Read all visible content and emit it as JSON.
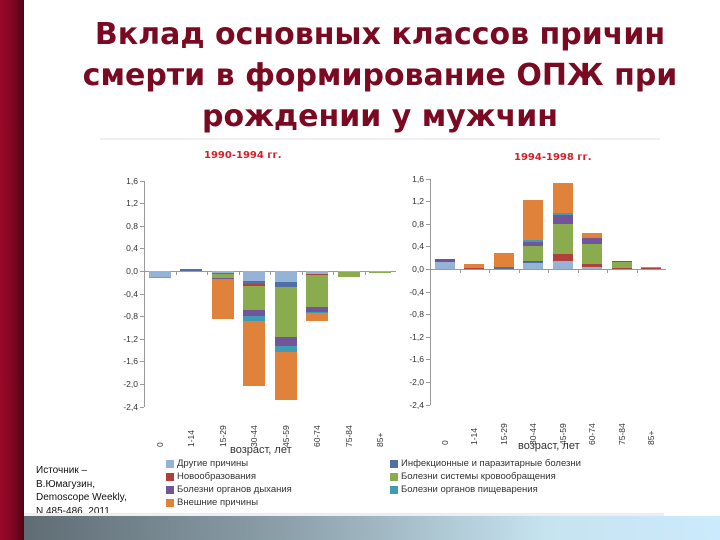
{
  "slide": {
    "title_lines": [
      "Вклад основных классов причин",
      "смерти в формирование ОПЖ при",
      "рождении у мужчин"
    ],
    "source_lines": [
      "Источник –",
      "В.Юмагузин,",
      "Demoscope Weekly,",
      "N 485-486, 2011"
    ],
    "colors": {
      "title": "#7a0a22",
      "accent_bar": "#8a0824",
      "chart_title": "#d4202a"
    }
  },
  "legend": [
    {
      "key": "other",
      "label": "Другие причины",
      "color": "#95b3d7"
    },
    {
      "key": "infectious",
      "label": "Инфекционные и паразитарные болезни",
      "color": "#4f6fa6"
    },
    {
      "key": "neoplasms",
      "label": "Новообразования",
      "color": "#b0403c"
    },
    {
      "key": "circulatory",
      "label": "Болезни системы кровообращения",
      "color": "#8aab4e"
    },
    {
      "key": "respiratory",
      "label": "Болезни органов дыхания",
      "color": "#72549a"
    },
    {
      "key": "digestive",
      "label": "Болезни органов пищеварения",
      "color": "#3f9cb4"
    },
    {
      "key": "external",
      "label": "Внешние причины",
      "color": "#e0823a"
    }
  ],
  "chart_data": [
    {
      "type": "bar",
      "stacked": true,
      "title": "1990-1994 гг.",
      "xlabel": "возраст, лет",
      "ylabel": "",
      "ylim": [
        -2.4,
        1.6
      ],
      "yticks": [
        "1,6",
        "1,2",
        "0,8",
        "0,4",
        "0,0",
        "-0,4",
        "-0,8",
        "-1,2",
        "-1,6",
        "-2,0",
        "-2,4"
      ],
      "categories": [
        "0",
        "1-14",
        "15-29",
        "30-44",
        "45-59",
        "60-74",
        "75-84",
        "85+"
      ],
      "series": [
        {
          "name": "Другие причины",
          "values": [
            -0.1,
            0.0,
            -0.03,
            -0.18,
            -0.2,
            -0.05,
            -0.01,
            -0.01
          ]
        },
        {
          "name": "Инфекционные и паразитарные болезни",
          "values": [
            -0.01,
            0.03,
            -0.02,
            -0.05,
            -0.08,
            0.0,
            0.0,
            -0.01
          ]
        },
        {
          "name": "Новообразования",
          "values": [
            0.0,
            0.0,
            -0.01,
            -0.03,
            0.0,
            -0.02,
            0.0,
            0.0
          ]
        },
        {
          "name": "Болезни системы кровообращения",
          "values": [
            0.0,
            0.0,
            -0.06,
            -0.43,
            -0.88,
            -0.57,
            -0.1,
            -0.02
          ]
        },
        {
          "name": "Болезни органов дыхания",
          "values": [
            0.0,
            0.0,
            -0.02,
            -0.1,
            -0.17,
            -0.09,
            0.0,
            0.0
          ]
        },
        {
          "name": "Болезни органов пищеварения",
          "values": [
            0.0,
            0.0,
            0.0,
            -0.1,
            -0.1,
            -0.02,
            0.0,
            0.0
          ]
        },
        {
          "name": "Внешние причины",
          "values": [
            -0.02,
            0.0,
            -0.71,
            -1.14,
            -0.85,
            -0.13,
            0.0,
            0.0
          ]
        }
      ]
    },
    {
      "type": "bar",
      "stacked": true,
      "title": "1994-1998 гг.",
      "xlabel": "возраст, лет",
      "ylabel": "",
      "ylim": [
        -2.4,
        1.6
      ],
      "yticks": [
        "1,6",
        "1,2",
        "0,8",
        "0,4",
        "0,0",
        "-0,4",
        "-0,8",
        "-1,2",
        "-1,6",
        "-2,0",
        "-2,4"
      ],
      "categories": [
        "0",
        "1-14",
        "15-29",
        "30-44",
        "45-59",
        "60-74",
        "75-84",
        "85+"
      ],
      "series": [
        {
          "name": "Другие причины",
          "values": [
            0.13,
            0.0,
            0.0,
            0.1,
            0.15,
            0.04,
            0.0,
            0.0
          ]
        },
        {
          "name": "Инфекционные и паразитарные болезни",
          "values": [
            0.0,
            0.0,
            0.03,
            0.02,
            0.0,
            0.0,
            0.0,
            0.0
          ]
        },
        {
          "name": "Новообразования",
          "values": [
            0.0,
            0.01,
            0.0,
            0.03,
            0.12,
            0.05,
            0.01,
            0.01
          ]
        },
        {
          "name": "Болезни системы кровообращения",
          "values": [
            0.0,
            0.0,
            0.0,
            0.26,
            0.52,
            0.36,
            0.11,
            0.0
          ]
        },
        {
          "name": "Болезни органов дыхания",
          "values": [
            0.05,
            0.0,
            0.0,
            0.06,
            0.16,
            0.09,
            0.02,
            0.0
          ]
        },
        {
          "name": "Болезни органов пищеварения",
          "values": [
            0.0,
            0.0,
            0.0,
            0.04,
            0.04,
            0.0,
            0.0,
            0.0
          ]
        },
        {
          "name": "Внешние причины",
          "values": [
            0.0,
            0.08,
            0.25,
            0.71,
            0.54,
            0.09,
            0.0,
            0.03
          ]
        }
      ]
    }
  ]
}
